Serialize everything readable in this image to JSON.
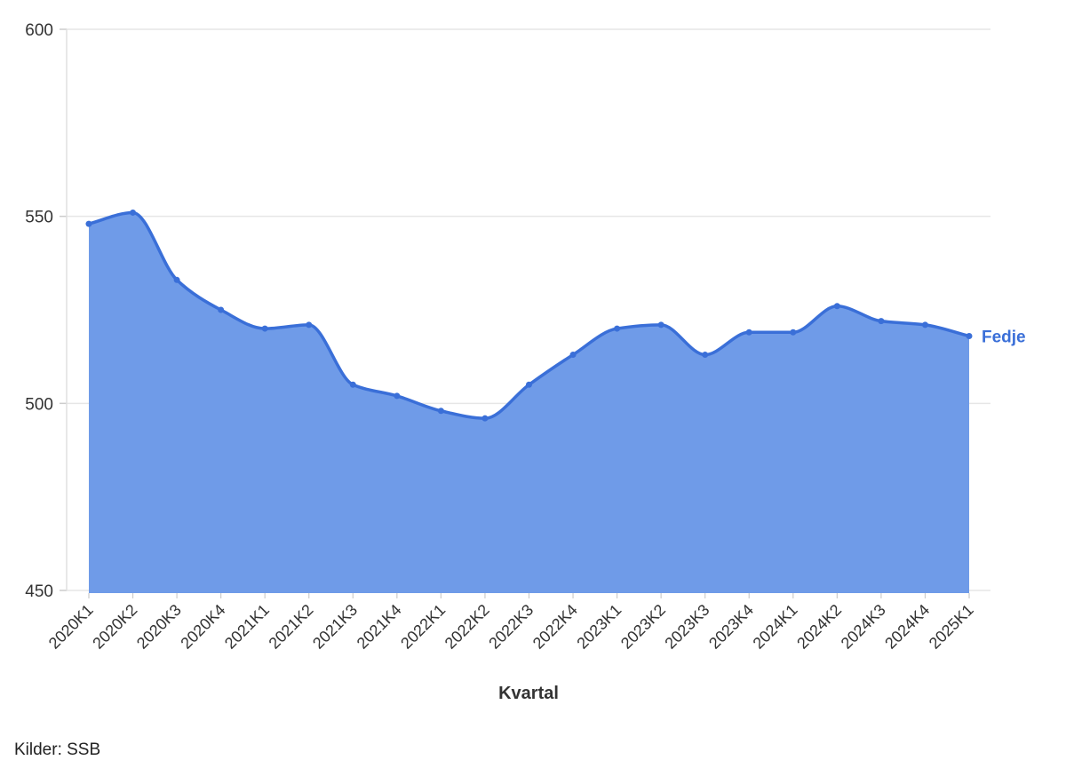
{
  "chart_data": {
    "type": "area",
    "xlabel": "Kvartal",
    "ylabel": "",
    "ylim": [
      450,
      600
    ],
    "yticks": [
      450,
      500,
      550,
      600
    ],
    "grid": true,
    "categories": [
      "2020K1",
      "2020K2",
      "2020K3",
      "2020K4",
      "2021K1",
      "2021K2",
      "2021K3",
      "2021K4",
      "2022K1",
      "2022K2",
      "2022K3",
      "2022K4",
      "2023K1",
      "2023K2",
      "2023K3",
      "2023K4",
      "2024K1",
      "2024K2",
      "2024K3",
      "2024K4",
      "2025K1"
    ],
    "series": [
      {
        "name": "Fedje",
        "values": [
          548,
          551,
          533,
          525,
          520,
          521,
          505,
          502,
          498,
          496,
          505,
          513,
          520,
          521,
          513,
          519,
          519,
          526,
          522,
          521,
          518
        ]
      }
    ]
  },
  "colors": {
    "line": "#3a6fd8",
    "fill": "#6f9be8",
    "grid": "#e6e6e6",
    "label": "#3a6fd8"
  },
  "source": "Kilder: SSB"
}
